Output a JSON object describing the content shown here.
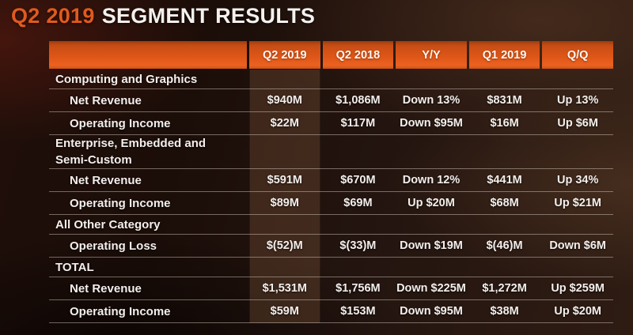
{
  "slide": {
    "title_accent": "Q2 2019",
    "title_rest": "SEGMENT RESULTS"
  },
  "table": {
    "columns": [
      "",
      "Q2 2019",
      "Q2 2018",
      "Y/Y",
      "Q1 2019",
      "Q/Q"
    ],
    "highlighted_column": "Q2 2019",
    "rows": [
      {
        "type": "section",
        "label": "Computing and Graphics",
        "values": [
          "",
          "",
          "",
          "",
          ""
        ]
      },
      {
        "type": "data",
        "label": "Net Revenue",
        "values": [
          "$940M",
          "$1,086M",
          "Down 13%",
          "$831M",
          "Up 13%"
        ]
      },
      {
        "type": "data",
        "label": "Operating Income",
        "values": [
          "$22M",
          "$117M",
          "Down $95M",
          "$16M",
          "Up $6M"
        ]
      },
      {
        "type": "section",
        "label": "Enterprise, Embedded and Semi-Custom",
        "values": [
          "",
          "",
          "",
          "",
          ""
        ]
      },
      {
        "type": "data",
        "label": "Net Revenue",
        "values": [
          "$591M",
          "$670M",
          "Down 12%",
          "$441M",
          "Up 34%"
        ]
      },
      {
        "type": "data",
        "label": "Operating Income",
        "values": [
          "$89M",
          "$69M",
          "Up $20M",
          "$68M",
          "Up $21M"
        ]
      },
      {
        "type": "section",
        "label": "All Other Category",
        "values": [
          "",
          "",
          "",
          "",
          ""
        ]
      },
      {
        "type": "data",
        "label": "Operating Loss",
        "values": [
          "$(52)M",
          "$(33)M",
          "Down $19M",
          "$(46)M",
          "Down $6M"
        ]
      },
      {
        "type": "section",
        "label": "TOTAL",
        "values": [
          "",
          "",
          "",
          "",
          ""
        ]
      },
      {
        "type": "data",
        "label": "Net Revenue",
        "values": [
          "$1,531M",
          "$1,756M",
          "Down $225M",
          "$1,272M",
          "Up $259M"
        ]
      },
      {
        "type": "data",
        "label": "Operating Income",
        "values": [
          "$59M",
          "$153M",
          "Down $95M",
          "$38M",
          "Up $20M"
        ]
      }
    ]
  },
  "colors": {
    "accent_orange": "#e05a1e",
    "title_white": "#f4f1ee",
    "header_orange_top": "#9c3d0e",
    "header_orange_mid": "#de5617",
    "header_orange_bottom": "#ea6120",
    "highlight_column": "#96674848",
    "row_line": "#e2d8ce73",
    "text": "#f3efec"
  }
}
